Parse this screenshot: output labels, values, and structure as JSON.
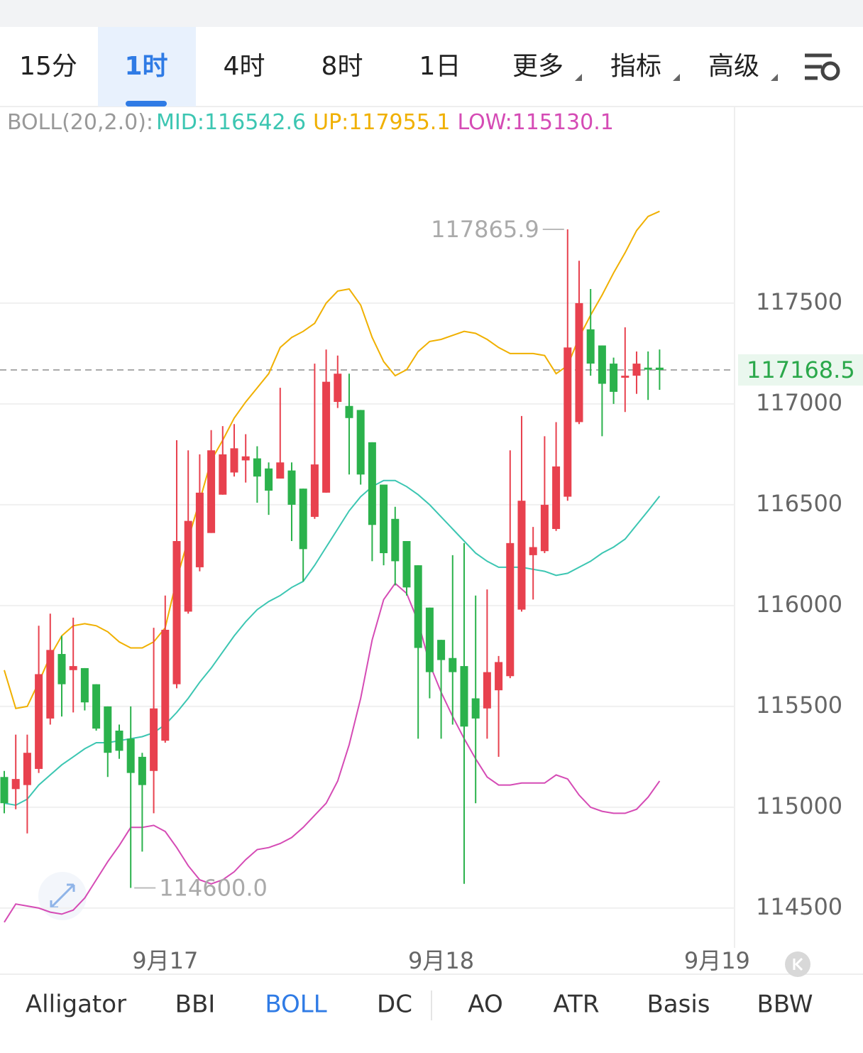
{
  "tabs": [
    {
      "label": "15分"
    },
    {
      "label": "1时"
    },
    {
      "label": "4时"
    },
    {
      "label": "8时"
    },
    {
      "label": "1日"
    },
    {
      "label": "更多",
      "menu": true
    },
    {
      "label": "指标",
      "menu": true
    },
    {
      "label": "高级",
      "menu": true
    }
  ],
  "active_tab": 1,
  "indicator_tabs": [
    "Alligator",
    "BBI",
    "BOLL",
    "DC",
    "AO",
    "ATR",
    "Basis",
    "BBW"
  ],
  "active_indicator": 2,
  "chart_data": {
    "type": "candlestick",
    "indicator_label": "BOLL(20,2.0):",
    "x": [
      0,
      1,
      2,
      3,
      4,
      5,
      6,
      7,
      8,
      9,
      10,
      11,
      12,
      13,
      14,
      15,
      16,
      17,
      18,
      19,
      20,
      21,
      22,
      23,
      24,
      25,
      26,
      27,
      28,
      29,
      30,
      31,
      32,
      33,
      34,
      35,
      36,
      37,
      38,
      39,
      40,
      41,
      42,
      43,
      44,
      45,
      46,
      47,
      48,
      49,
      50,
      51,
      52,
      53,
      54,
      55,
      56,
      57
    ],
    "xlim": [
      -0.37,
      63.52
    ],
    "xticks": [
      {
        "value": 14,
        "label": "9月17"
      },
      {
        "value": 38,
        "label": "9月18"
      },
      {
        "value": 62,
        "label": "9月19"
      }
    ],
    "ylim": [
      114320,
      118475
    ],
    "yticks": [
      114500,
      115000,
      115500,
      116000,
      116500,
      117000,
      117500
    ],
    "grid": true,
    "up_color": "#e8414e",
    "down_color": "#2bb24c",
    "ohlc": {
      "open": [
        115150,
        115090,
        115110,
        115190,
        115440,
        115760,
        115680,
        115690,
        115610,
        115500,
        115380,
        115340,
        115250,
        115180,
        115330,
        115610,
        115970,
        116190,
        116360,
        116550,
        116660,
        116720,
        116730,
        116680,
        116630,
        116670,
        116580,
        116440,
        116560,
        117010,
        116990,
        116970,
        116810,
        116600,
        116430,
        116320,
        116200,
        115990,
        115830,
        115740,
        115700,
        115540,
        115490,
        115580,
        115650,
        115980,
        116250,
        116270,
        116380,
        116540,
        116910,
        117370,
        117290,
        117200,
        117130,
        117140,
        117180,
        117180
      ],
      "high": [
        115180,
        115360,
        115360,
        115900,
        115960,
        115850,
        115940,
        115690,
        115610,
        115500,
        115410,
        115500,
        115270,
        115890,
        116050,
        116820,
        116770,
        116750,
        116870,
        116890,
        116900,
        116850,
        116790,
        116710,
        117080,
        116710,
        116580,
        117200,
        117270,
        117240,
        117150,
        116970,
        116810,
        116600,
        116490,
        116320,
        116200,
        115990,
        115830,
        116250,
        116310,
        116050,
        116080,
        115750,
        116770,
        116940,
        116390,
        116840,
        116910,
        117865.9,
        117710,
        117570,
        117290,
        117230,
        117380,
        117260,
        117260,
        117270
      ],
      "low": [
        114970,
        114990,
        114870,
        115170,
        115410,
        115450,
        115470,
        115480,
        115380,
        115150,
        115240,
        114600,
        114780,
        114970,
        115320,
        115590,
        115960,
        116170,
        116360,
        116550,
        116640,
        116610,
        116510,
        116450,
        116630,
        116320,
        116120,
        116430,
        116560,
        116980,
        116650,
        116600,
        116220,
        116200,
        116100,
        116050,
        115340,
        115540,
        115340,
        115410,
        114620,
        115020,
        115340,
        115250,
        115640,
        115970,
        116030,
        116260,
        116370,
        116520,
        116900,
        117140,
        116840,
        117000,
        116960,
        117050,
        117020,
        117070
      ],
      "close": [
        115020,
        115140,
        115270,
        115660,
        115780,
        115610,
        115700,
        115520,
        115390,
        115270,
        115280,
        115170,
        115110,
        115490,
        115880,
        116320,
        116420,
        116560,
        116770,
        116750,
        116780,
        116740,
        116640,
        116570,
        116710,
        116500,
        116280,
        116700,
        117110,
        117150,
        116930,
        116650,
        116400,
        116260,
        116220,
        116090,
        115790,
        115670,
        115730,
        115670,
        115400,
        115440,
        115670,
        115720,
        116310,
        116520,
        116290,
        116500,
        116690,
        117280,
        117500,
        117200,
        117100,
        117060,
        117140,
        117200,
        117170,
        117168.5
      ]
    },
    "series": [
      {
        "name": "MID:116542.6",
        "color": "#3cc6b2",
        "values": [
          115020,
          115010,
          115040,
          115110,
          115160,
          115210,
          115250,
          115290,
          115320,
          115320,
          115330,
          115340,
          115350,
          115370,
          115410,
          115470,
          115540,
          115620,
          115690,
          115770,
          115850,
          115920,
          115980,
          116020,
          116050,
          116090,
          116120,
          116200,
          116290,
          116380,
          116470,
          116540,
          116590,
          116620,
          116620,
          116590,
          116550,
          116500,
          116440,
          116380,
          116320,
          116260,
          116220,
          116190,
          116190,
          116190,
          116180,
          116170,
          116150,
          116160,
          116190,
          116220,
          116260,
          116290,
          116330,
          116400,
          116470,
          116542.6
        ]
      },
      {
        "name": "UP:117955.1",
        "color": "#f0b000",
        "values": [
          115680,
          115490,
          115500,
          115620,
          115750,
          115850,
          115900,
          115910,
          115900,
          115870,
          115820,
          115790,
          115790,
          115820,
          115890,
          116130,
          116330,
          116520,
          116720,
          116820,
          116930,
          117010,
          117080,
          117150,
          117280,
          117330,
          117360,
          117400,
          117500,
          117560,
          117570,
          117490,
          117330,
          117210,
          117140,
          117170,
          117260,
          117310,
          117320,
          117340,
          117360,
          117350,
          117320,
          117280,
          117250,
          117250,
          117250,
          117240,
          117150,
          117190,
          117330,
          117440,
          117540,
          117650,
          117750,
          117860,
          117930,
          117955.1
        ]
      },
      {
        "name": "LOW:115130.1",
        "color": "#d54bb5",
        "values": [
          114430,
          114520,
          114510,
          114500,
          114480,
          114470,
          114490,
          114550,
          114640,
          114730,
          114810,
          114900,
          114900,
          114910,
          114880,
          114800,
          114710,
          114640,
          114620,
          114640,
          114680,
          114740,
          114790,
          114800,
          114820,
          114850,
          114900,
          114960,
          115020,
          115130,
          115310,
          115540,
          115830,
          116030,
          116110,
          116060,
          115920,
          115710,
          115570,
          115450,
          115340,
          115240,
          115150,
          115110,
          115110,
          115120,
          115120,
          115120,
          115160,
          115140,
          115060,
          115000,
          114980,
          114970,
          114970,
          114990,
          115050,
          115130.1
        ]
      }
    ],
    "last_price": 117168.5,
    "annotations": [
      {
        "x": 49,
        "value": 117865.9
      },
      {
        "x": 11,
        "value": 114600,
        "label": "114600.0"
      }
    ]
  }
}
